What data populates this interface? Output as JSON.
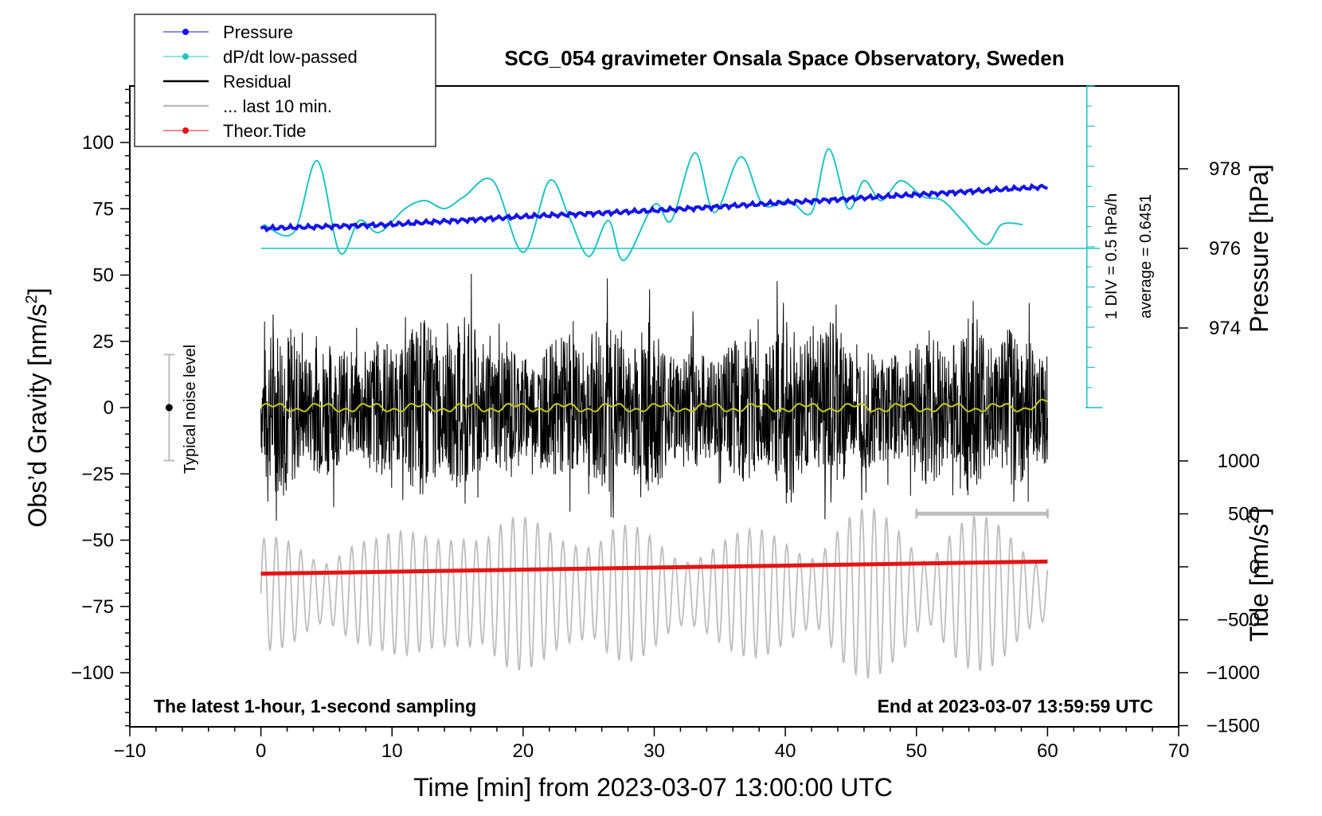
{
  "chart_data": {
    "type": "line",
    "title": "SCG_054 gravimeter Onsala Space Observatory, Sweden",
    "xlabel": "Time [min] from 2023-03-07 13:00:00 UTC",
    "xlim": [
      -10,
      70
    ],
    "xticks": [
      "-10",
      "0",
      "10",
      "20",
      "30",
      "40",
      "50",
      "60",
      "70"
    ],
    "left_axis": {
      "label": "Obs'd Gravity [nm/s²]",
      "label_main": "Obs’d Gravity [nm/s",
      "label_sup": "2",
      "label_end": "]",
      "ylim": [
        -120,
        120
      ],
      "ticks": [
        "100",
        "75",
        "50",
        "25",
        "0",
        "-25",
        "-50",
        "-75",
        "-100"
      ],
      "tick_values": [
        100,
        75,
        50,
        25,
        0,
        -25,
        -50,
        -75,
        -100
      ]
    },
    "pressure_axis": {
      "label": "Pressure [hPa]",
      "ticks": [
        "978",
        "976",
        "974"
      ],
      "tick_values": [
        978,
        976,
        974
      ]
    },
    "tide_axis": {
      "label": "Tide [nm/s²]",
      "label_main": "Tide [nm/s",
      "label_sup": "2",
      "label_end": "]",
      "ticks": [
        "1000",
        "500",
        "0",
        "-500",
        "-1000",
        "-1500"
      ],
      "tick_values": [
        1000,
        500,
        0,
        -500,
        -1000,
        -1500
      ]
    },
    "legend": {
      "placement": "top-left",
      "entries": [
        {
          "label": "Pressure",
          "color": "#1414e6",
          "marker": true
        },
        {
          "label": "dP/dt low-passed",
          "color": "#1fc4c4",
          "marker": true
        },
        {
          "label": "Residual",
          "color": "#000000",
          "marker": false
        },
        {
          "label": "... last 10 min.",
          "color": "#bdbdbd",
          "marker": false
        },
        {
          "label": "Theor.Tide",
          "color": "#e61414",
          "marker": true
        }
      ]
    },
    "series": [
      {
        "name": "Pressure",
        "unit": "hPa",
        "points": [
          [
            0,
            976.5
          ],
          [
            10,
            976.6
          ],
          [
            20,
            976.8
          ],
          [
            30,
            976.95
          ],
          [
            40,
            977.15
          ],
          [
            50,
            977.35
          ],
          [
            60,
            977.55
          ]
        ]
      },
      {
        "name": "dP/dt low-passed",
        "unit": "hPa/h",
        "points": [
          [
            0.2,
            976.6
          ],
          [
            2.5,
            976.4
          ],
          [
            4.3,
            978.2
          ],
          [
            6,
            975.9
          ],
          [
            7.5,
            976.7
          ],
          [
            9,
            976.4
          ],
          [
            11,
            977.0
          ],
          [
            12.5,
            977.2
          ],
          [
            14,
            977.0
          ],
          [
            15.5,
            977.3
          ],
          [
            17.7,
            977.7
          ],
          [
            20,
            975.9
          ],
          [
            22,
            977.7
          ],
          [
            23.5,
            976.8
          ],
          [
            25,
            975.8
          ],
          [
            26.5,
            976.7
          ],
          [
            27.7,
            975.7
          ],
          [
            30,
            977.1
          ],
          [
            31.3,
            976.7
          ],
          [
            33.1,
            978.4
          ],
          [
            34.6,
            976.9
          ],
          [
            36.6,
            978.3
          ],
          [
            38.3,
            977.1
          ],
          [
            40.3,
            977.2
          ],
          [
            42,
            976.9
          ],
          [
            43.3,
            978.5
          ],
          [
            44.8,
            977.0
          ],
          [
            46,
            977.7
          ],
          [
            47.3,
            977.2
          ],
          [
            48.8,
            977.7
          ],
          [
            50.5,
            977.3
          ],
          [
            52,
            977.2
          ],
          [
            53.5,
            976.7
          ],
          [
            55.3,
            976.1
          ],
          [
            56.5,
            976.6
          ],
          [
            58.1,
            976.6
          ]
        ]
      },
      {
        "name": "Residual",
        "unit": "nm/s²",
        "x_range": [
          0,
          60
        ],
        "typical_range": [
          -35,
          35
        ]
      },
      {
        "name": "Residual smoothed",
        "unit": "nm/s²",
        "color": "#c8c81e",
        "x_range": [
          0,
          60
        ],
        "value": 0
      },
      {
        "name": "... last 10 min.",
        "unit": "nm/s²",
        "x_range": [
          0,
          60
        ],
        "typical_range": [
          -1000,
          500
        ]
      },
      {
        "name": "Theor.Tide",
        "unit": "nm/s²",
        "points": [
          [
            0,
            -65
          ],
          [
            60,
            50
          ]
        ]
      }
    ],
    "noise_bar": {
      "x": -7,
      "value": 0,
      "range": [
        -20,
        20
      ],
      "label": "Typical noise level"
    },
    "last10_bar": {
      "x_range": [
        50,
        60
      ]
    },
    "pressure_scale": {
      "label1": "1 DIV = 0.5 hPa/h",
      "label2": "average = 0.6451"
    },
    "notes": {
      "bottom_left": "The latest 1-hour, 1-second sampling",
      "bottom_right": "End at 2023-03-07 13:59:59 UTC"
    }
  }
}
